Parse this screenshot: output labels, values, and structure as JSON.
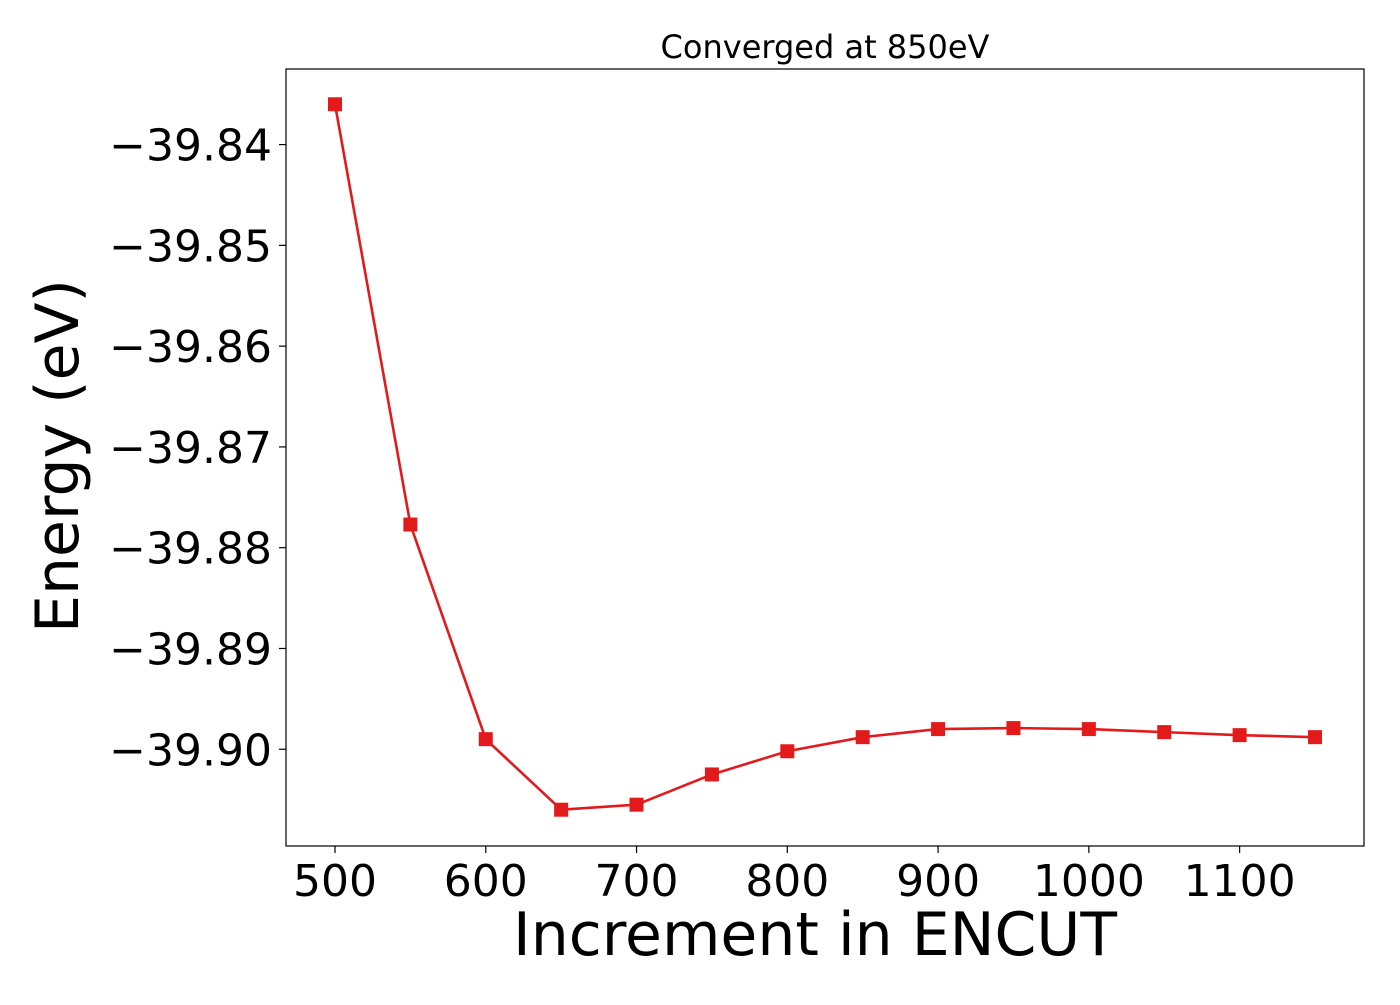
{
  "chart_data": {
    "type": "line",
    "title": "Converged at 850eV",
    "xlabel": "Increment in ENCUT",
    "ylabel": "Energy (eV)",
    "xlim": [
      467.5,
      1182.5
    ],
    "ylim": [
      -39.9096,
      -39.8325
    ],
    "x_ticks": [
      500,
      600,
      700,
      800,
      900,
      1000,
      1100
    ],
    "x_tick_labels": [
      "500",
      "600",
      "700",
      "800",
      "900",
      "1000",
      "1100"
    ],
    "y_ticks": [
      -39.84,
      -39.85,
      -39.86,
      -39.87,
      -39.88,
      -39.89,
      -39.9
    ],
    "y_tick_labels": [
      "−39.84",
      "−39.85",
      "−39.86",
      "−39.87",
      "−39.88",
      "−39.89",
      "−39.90"
    ],
    "grid": false,
    "legend": "none",
    "series": [
      {
        "color": "#e31a1c",
        "marker": "square",
        "x": [
          500,
          550,
          600,
          650,
          700,
          750,
          800,
          850,
          900,
          950,
          1000,
          1050,
          1100,
          1150
        ],
        "y": [
          -39.836,
          -39.8777,
          -39.899,
          -39.906,
          -39.9055,
          -39.9025,
          -39.9002,
          -39.8988,
          -39.898,
          -39.8979,
          -39.898,
          -39.8983,
          -39.8986,
          -39.8988
        ]
      }
    ]
  }
}
